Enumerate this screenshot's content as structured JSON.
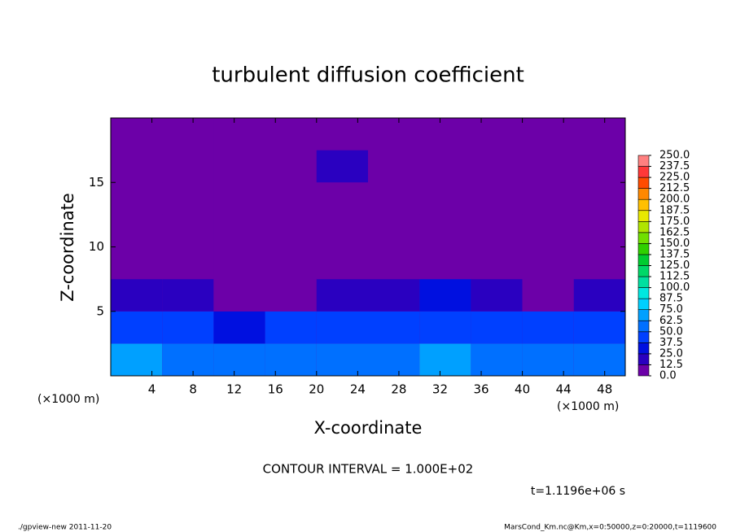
{
  "chart_data": {
    "type": "contour",
    "title": "turbulent diffusion coefficient",
    "xlabel": "X-coordinate",
    "ylabel": "Z-coordinate",
    "xunit": "(×1000 m)",
    "yunit": "(×1000 m)",
    "contour_interval": "CONTOUR INTERVAL = 1.000E+02",
    "time": "t=1.1196e+06 s",
    "footer_left": "./gpview-new   2011-11-20",
    "footer_right": "MarsCond_Km.nc@Km,x=0:50000,z=0:20000,t=1119600",
    "xlim": [
      0,
      50
    ],
    "ylim": [
      0,
      20
    ],
    "xticks": [
      4,
      8,
      12,
      16,
      20,
      24,
      28,
      32,
      36,
      40,
      44,
      48
    ],
    "yticks": [
      5,
      10,
      15
    ],
    "x": [
      2.5,
      7.5,
      12.5,
      17.5,
      22.5,
      27.5,
      32.5,
      37.5,
      42.5,
      47.5
    ],
    "z": [
      1.25,
      3.75,
      6.25,
      8.75,
      11.25,
      13.75,
      16.25,
      18.75
    ],
    "values": [
      [
        70,
        60,
        55,
        50,
        55,
        60,
        65,
        55,
        60,
        55
      ],
      [
        45,
        40,
        35,
        40,
        45,
        45,
        40,
        40,
        45,
        40
      ],
      [
        20,
        15,
        5,
        10,
        15,
        20,
        25,
        20,
        10,
        20
      ],
      [
        10,
        10,
        5,
        5,
        10,
        5,
        10,
        10,
        10,
        10
      ],
      [
        5,
        5,
        5,
        5,
        5,
        5,
        5,
        5,
        5,
        5
      ],
      [
        0,
        0,
        0,
        0,
        5,
        0,
        0,
        0,
        0,
        0
      ],
      [
        0,
        5,
        5,
        10,
        15,
        5,
        0,
        0,
        5,
        10
      ],
      [
        0,
        5,
        5,
        0,
        0,
        0,
        0,
        0,
        0,
        0
      ]
    ],
    "levels": [
      {
        "value": 0,
        "label": "0.0"
      },
      {
        "value": 12.5,
        "label": "12.5"
      },
      {
        "value": 25,
        "label": "25.0"
      },
      {
        "value": 37.5,
        "label": "37.5"
      },
      {
        "value": 50,
        "label": "50.0"
      },
      {
        "value": 62.5,
        "label": "62.5"
      },
      {
        "value": 75,
        "label": "75.0"
      },
      {
        "value": 87.5,
        "label": "87.5"
      },
      {
        "value": 100,
        "label": "100.0"
      },
      {
        "value": 112.5,
        "label": "112.5"
      },
      {
        "value": 125,
        "label": "125.0"
      },
      {
        "value": 137.5,
        "label": "137.5"
      },
      {
        "value": 150,
        "label": "150.0"
      },
      {
        "value": 162.5,
        "label": "162.5"
      },
      {
        "value": 175,
        "label": "175.0"
      },
      {
        "value": 187.5,
        "label": "187.5"
      },
      {
        "value": 200,
        "label": "200.0"
      },
      {
        "value": 212.5,
        "label": "212.5"
      },
      {
        "value": 225,
        "label": "225.0"
      },
      {
        "value": 237.5,
        "label": "237.5"
      },
      {
        "value": 250,
        "label": "250.0"
      }
    ],
    "colors": [
      "#6c00a8",
      "#2a00c0",
      "#0010e0",
      "#0040ff",
      "#0070ff",
      "#00a0ff",
      "#00d0ff",
      "#00e8e0",
      "#00e0a0",
      "#00d868",
      "#00cc30",
      "#30d000",
      "#70e000",
      "#b0e400",
      "#e8e800",
      "#ffc000",
      "#ff8800",
      "#ff4c00",
      "#ff3838",
      "#ff8080"
    ]
  }
}
